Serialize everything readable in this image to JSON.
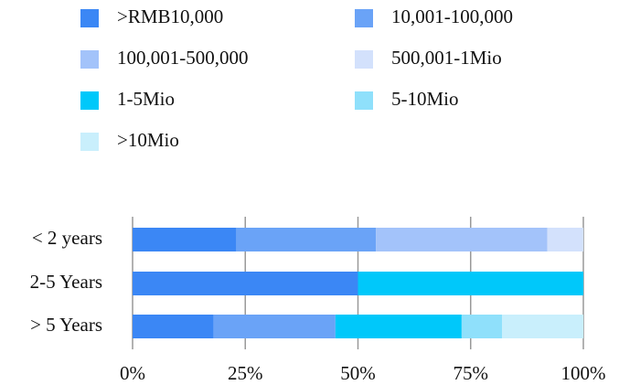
{
  "chart_data": {
    "type": "stacked_bar_horizontal",
    "categories": [
      "< 2 years",
      "2-5 Years",
      "> 5 Years"
    ],
    "series": [
      {
        "name": ">RMB10,000",
        "color": "#3b87f5",
        "values": [
          23,
          50,
          18
        ]
      },
      {
        "name": "10,001-100,000",
        "color": "#6aa3f7",
        "values": [
          31,
          0,
          27
        ]
      },
      {
        "name": "100,001-500,000",
        "color": "#a3c3fa",
        "values": [
          38,
          0,
          0
        ]
      },
      {
        "name": "500,001-1Mio",
        "color": "#d3e1fc",
        "values": [
          8,
          0,
          0
        ]
      },
      {
        "name": "1-5Mio",
        "color": "#00c8fa",
        "values": [
          0,
          50,
          28
        ]
      },
      {
        "name": "5-10Mio",
        "color": "#8fe0fb",
        "values": [
          0,
          0,
          9
        ]
      },
      {
        "name": ">10Mio",
        "color": "#c9effc",
        "values": [
          0,
          0,
          18
        ]
      }
    ],
    "xlim": [
      0,
      100
    ],
    "xticks": [
      {
        "value": 0,
        "label": "0%"
      },
      {
        "value": 25,
        "label": "25%"
      },
      {
        "value": 50,
        "label": "50%"
      },
      {
        "value": 75,
        "label": "75%"
      },
      {
        "value": 100,
        "label": "100%"
      }
    ],
    "grid": true
  }
}
